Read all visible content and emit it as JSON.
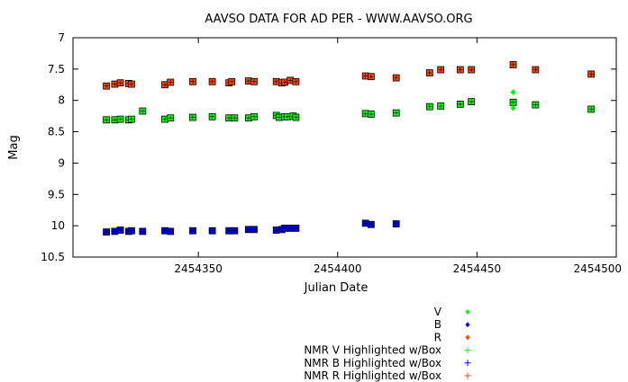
{
  "chart_data": {
    "type": "scatter",
    "title": "AAVSO DATA FOR AD PER - WWW.AAVSO.ORG",
    "xlabel": "Julian Date",
    "ylabel": "Mag",
    "xlim": [
      2454305,
      2454500
    ],
    "ylim": [
      10.5,
      7
    ],
    "y_inverted": true,
    "x_ticks": [
      2454350,
      2454400,
      2454450,
      2454500
    ],
    "y_ticks": [
      7,
      7.5,
      8,
      8.5,
      9,
      9.5,
      10,
      10.5
    ],
    "y_tick_labels": [
      "7",
      "7.5",
      "8",
      "8.5",
      "9",
      "9.5",
      "10",
      "10.5"
    ],
    "grid": false,
    "legend_position": "bottom-right",
    "legend": [
      {
        "label": "V",
        "color": "#00ff00",
        "marker": "diamond"
      },
      {
        "label": "B",
        "color": "#0000ff",
        "marker": "diamond"
      },
      {
        "label": "R",
        "color": "#ff4500",
        "marker": "diamond"
      },
      {
        "label": "NMR V Highlighted w/Box",
        "color": "#00ff00",
        "marker": "plus"
      },
      {
        "label": "NMR B Highlighted w/Box",
        "color": "#0000ff",
        "marker": "plus"
      },
      {
        "label": "NMR R Highlighted w/Box",
        "color": "#ff4500",
        "marker": "plus"
      }
    ],
    "series": [
      {
        "name": "V",
        "color": "#00ff00",
        "points": [
          [
            2454317,
            8.31
          ],
          [
            2454320,
            8.31
          ],
          [
            2454322,
            8.3
          ],
          [
            2454325,
            8.31
          ],
          [
            2454326,
            8.3
          ],
          [
            2454330,
            8.17
          ],
          [
            2454338,
            8.3
          ],
          [
            2454340,
            8.28
          ],
          [
            2454348,
            8.27
          ],
          [
            2454355,
            8.26
          ],
          [
            2454361,
            8.28
          ],
          [
            2454363,
            8.28
          ],
          [
            2454368,
            8.28
          ],
          [
            2454370,
            8.26
          ],
          [
            2454378,
            8.24
          ],
          [
            2454379,
            8.27
          ],
          [
            2454381,
            8.26
          ],
          [
            2454382,
            8.26
          ],
          [
            2454384,
            8.25
          ],
          [
            2454385,
            8.27
          ],
          [
            2454410,
            8.21
          ],
          [
            2454412,
            8.22
          ],
          [
            2454421,
            8.2
          ],
          [
            2454433,
            8.1
          ],
          [
            2454437,
            8.09
          ],
          [
            2454444,
            8.06
          ],
          [
            2454448,
            8.02
          ],
          [
            2454463,
            8.03
          ],
          [
            2454471,
            8.07
          ],
          [
            2454491,
            8.14
          ]
        ],
        "unboxed_points": [
          [
            2454463,
            7.87
          ],
          [
            2454463,
            8.12
          ]
        ]
      },
      {
        "name": "B",
        "color": "#0000ff",
        "points": [
          [
            2454317,
            10.1
          ],
          [
            2454320,
            10.09
          ],
          [
            2454322,
            10.07
          ],
          [
            2454325,
            10.09
          ],
          [
            2454326,
            10.08
          ],
          [
            2454330,
            10.09
          ],
          [
            2454338,
            10.08
          ],
          [
            2454340,
            10.09
          ],
          [
            2454348,
            10.08
          ],
          [
            2454355,
            10.08
          ],
          [
            2454361,
            10.08
          ],
          [
            2454363,
            10.08
          ],
          [
            2454368,
            10.06
          ],
          [
            2454370,
            10.06
          ],
          [
            2454378,
            10.07
          ],
          [
            2454380,
            10.06
          ],
          [
            2454381,
            10.04
          ],
          [
            2454383,
            10.04
          ],
          [
            2454385,
            10.04
          ],
          [
            2454410,
            9.96
          ],
          [
            2454412,
            9.98
          ],
          [
            2454421,
            9.97
          ]
        ]
      },
      {
        "name": "R",
        "color": "#ff4500",
        "points": [
          [
            2454317,
            7.77
          ],
          [
            2454320,
            7.74
          ],
          [
            2454322,
            7.72
          ],
          [
            2454325,
            7.73
          ],
          [
            2454326,
            7.74
          ],
          [
            2454338,
            7.75
          ],
          [
            2454340,
            7.71
          ],
          [
            2454348,
            7.7
          ],
          [
            2454355,
            7.7
          ],
          [
            2454361,
            7.72
          ],
          [
            2454362,
            7.7
          ],
          [
            2454368,
            7.69
          ],
          [
            2454370,
            7.7
          ],
          [
            2454378,
            7.7
          ],
          [
            2454380,
            7.72
          ],
          [
            2454381,
            7.71
          ],
          [
            2454383,
            7.68
          ],
          [
            2454385,
            7.7
          ],
          [
            2454410,
            7.61
          ],
          [
            2454412,
            7.62
          ],
          [
            2454421,
            7.64
          ],
          [
            2454433,
            7.56
          ],
          [
            2454437,
            7.51
          ],
          [
            2454444,
            7.51
          ],
          [
            2454448,
            7.51
          ],
          [
            2454463,
            7.43
          ],
          [
            2454471,
            7.51
          ],
          [
            2454491,
            7.58
          ]
        ]
      }
    ]
  }
}
